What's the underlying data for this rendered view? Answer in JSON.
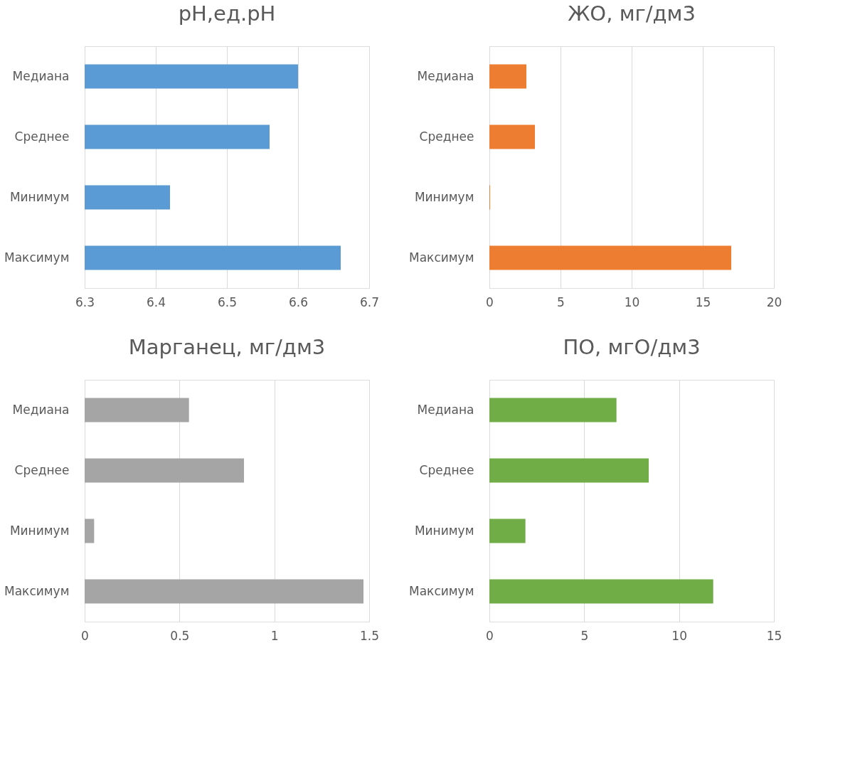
{
  "chart_data": [
    {
      "type": "bar",
      "orientation": "horizontal",
      "title": "pH,ед.pH",
      "categories": [
        "Медиана",
        "Среднее",
        "Минимум",
        "Максимум"
      ],
      "values": [
        6.6,
        6.56,
        6.42,
        6.66
      ],
      "color": "#5b9bd5",
      "xlim": [
        6.3,
        6.7
      ],
      "xticks": [
        6.3,
        6.4,
        6.5,
        6.6,
        6.7
      ],
      "grid": "x"
    },
    {
      "type": "bar",
      "orientation": "horizontal",
      "title": "ЖО, мг/дм3",
      "categories": [
        "Медиана",
        "Среднее",
        "Минимум",
        "Максимум"
      ],
      "values": [
        2.6,
        3.2,
        0.05,
        17.0
      ],
      "color": "#ed7d31",
      "xlim": [
        0,
        20
      ],
      "xticks": [
        0,
        5,
        10,
        15,
        20
      ],
      "grid": "x"
    },
    {
      "type": "bar",
      "orientation": "horizontal",
      "title": "Марганец, мг/дм3",
      "categories": [
        "Медиана",
        "Среднее",
        "Минимум",
        "Максимум"
      ],
      "values": [
        0.55,
        0.84,
        0.05,
        1.47
      ],
      "color": "#a5a5a5",
      "xlim": [
        0,
        1.5
      ],
      "xticks": [
        0,
        0.5,
        1,
        1.5
      ],
      "grid": "x"
    },
    {
      "type": "bar",
      "orientation": "horizontal",
      "title": "ПО, мгО/дм3",
      "categories": [
        "Медиана",
        "Среднее",
        "Минимум",
        "Максимум"
      ],
      "values": [
        6.7,
        8.4,
        1.9,
        11.8
      ],
      "color": "#70ad47",
      "xlim": [
        0,
        15
      ],
      "xticks": [
        0,
        5,
        10,
        15
      ],
      "grid": "x"
    }
  ]
}
